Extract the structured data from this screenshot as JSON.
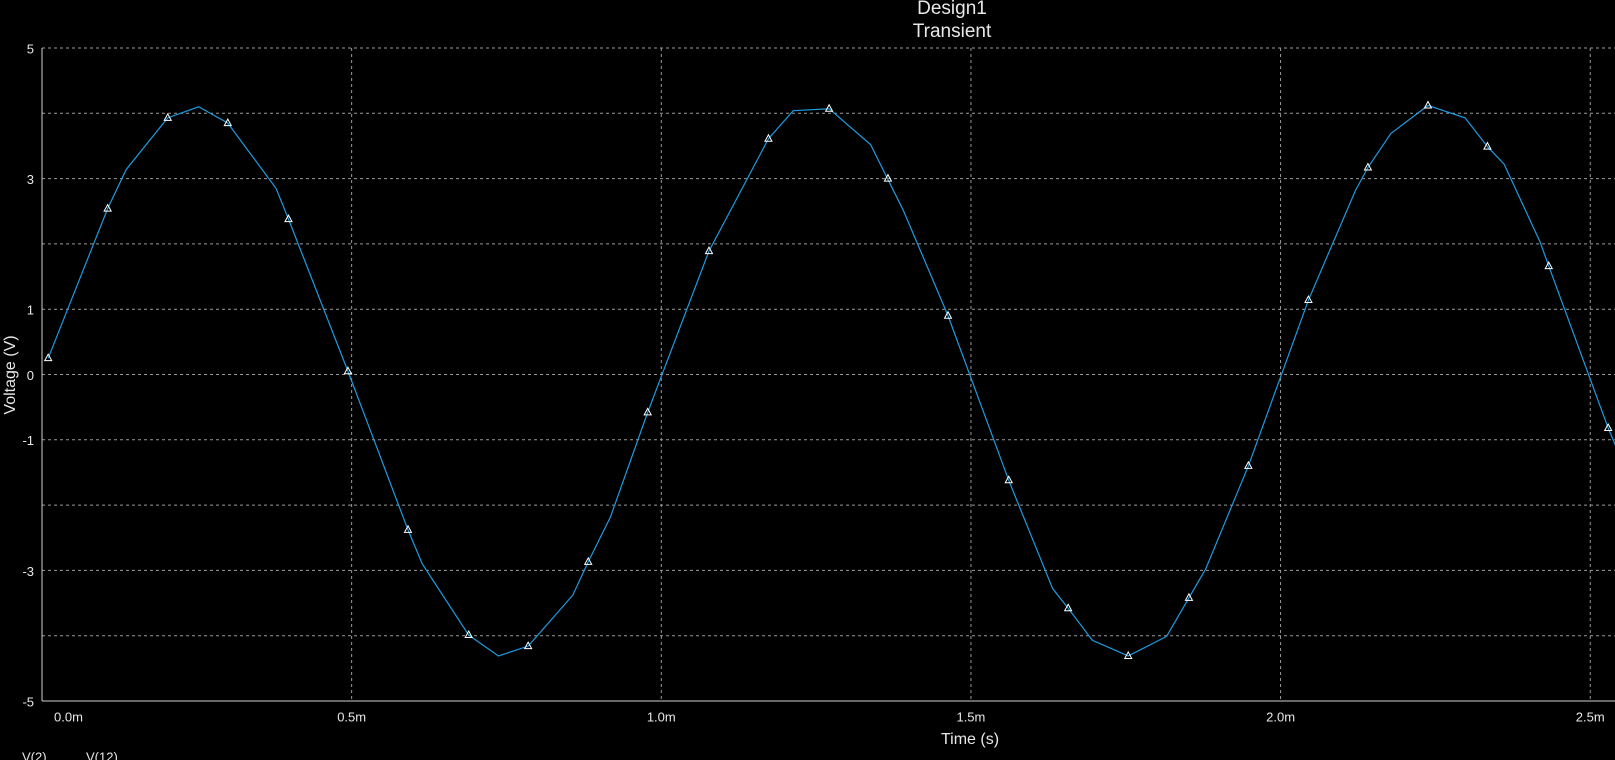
{
  "chart_data": {
    "type": "line",
    "title": "Design1",
    "subtitle": "Transient",
    "x_label": "Time (s)",
    "y_label": "Voltage (V)",
    "xlim": [
      0,
      0.00254
    ],
    "ylim": [
      -5,
      5
    ],
    "xticks": [
      {
        "value": 0,
        "label": "0.0m"
      },
      {
        "value": 0.0005,
        "label": "0.5m"
      },
      {
        "value": 0.001,
        "label": "1.0m"
      },
      {
        "value": 0.0015,
        "label": "1.5m"
      },
      {
        "value": 0.002,
        "label": "2.0m"
      },
      {
        "value": 0.0025,
        "label": "2.5m"
      }
    ],
    "yticks": [
      5,
      3,
      1,
      0,
      -1,
      -3,
      -5
    ],
    "y_minor_grid": [
      4,
      2,
      -2,
      -4
    ],
    "grid": true,
    "series": [
      {
        "name": "V(2)",
        "color": "#1e9be0",
        "marker": "none",
        "x": [
          1e-05,
          0.000106,
          0.000136,
          0.000203,
          0.000253,
          0.0003,
          0.000378,
          0.000398,
          0.000494,
          0.000591,
          0.000614,
          0.000689,
          0.000737,
          0.000785,
          0.000857,
          0.000882,
          0.000918,
          0.000978,
          0.001077,
          0.001173,
          0.001213,
          0.001271,
          0.001338,
          0.001391,
          0.001463,
          0.001561,
          0.001632,
          0.001657,
          0.001696,
          0.001754,
          0.001816,
          0.001852,
          0.001879,
          0.001948,
          0.002045,
          0.002121,
          0.002141,
          0.002178,
          0.002238,
          0.002298,
          0.002334,
          0.002361,
          0.002419,
          0.002433,
          0.002529,
          0.002541
        ],
        "values": [
          0.25,
          2.54,
          3.14,
          3.93,
          4.1,
          3.85,
          2.85,
          2.38,
          0.05,
          -2.38,
          -2.9,
          -3.99,
          -4.31,
          -4.16,
          -3.38,
          -2.87,
          -2.18,
          -0.58,
          1.89,
          3.61,
          4.04,
          4.07,
          3.52,
          2.51,
          0.9,
          -1.62,
          -3.28,
          -3.58,
          -4.07,
          -4.31,
          -4.01,
          -3.42,
          -2.98,
          -1.4,
          1.14,
          2.82,
          3.17,
          3.69,
          4.12,
          3.93,
          3.49,
          3.22,
          2.03,
          1.66,
          -0.82,
          -1.09
        ]
      },
      {
        "name": "V(12)",
        "color": "#ffffff",
        "marker": "triangle",
        "x": [
          1e-05,
          0.000106,
          0.000203,
          0.0003,
          0.000398,
          0.000494,
          0.000591,
          0.000689,
          0.000785,
          0.000882,
          0.000978,
          0.001077,
          0.001173,
          0.001271,
          0.001366,
          0.001463,
          0.001561,
          0.001657,
          0.001754,
          0.001852,
          0.001948,
          0.002045,
          0.002141,
          0.002238,
          0.002334,
          0.002433,
          0.002529
        ],
        "values": [
          0.25,
          2.54,
          3.93,
          3.85,
          2.38,
          0.05,
          -2.38,
          -3.99,
          -4.16,
          -2.87,
          -0.58,
          1.89,
          3.61,
          4.07,
          3.0,
          0.9,
          -1.62,
          -3.58,
          -4.31,
          -3.42,
          -1.4,
          1.14,
          3.17,
          4.12,
          3.49,
          1.66,
          -0.82
        ]
      }
    ]
  }
}
